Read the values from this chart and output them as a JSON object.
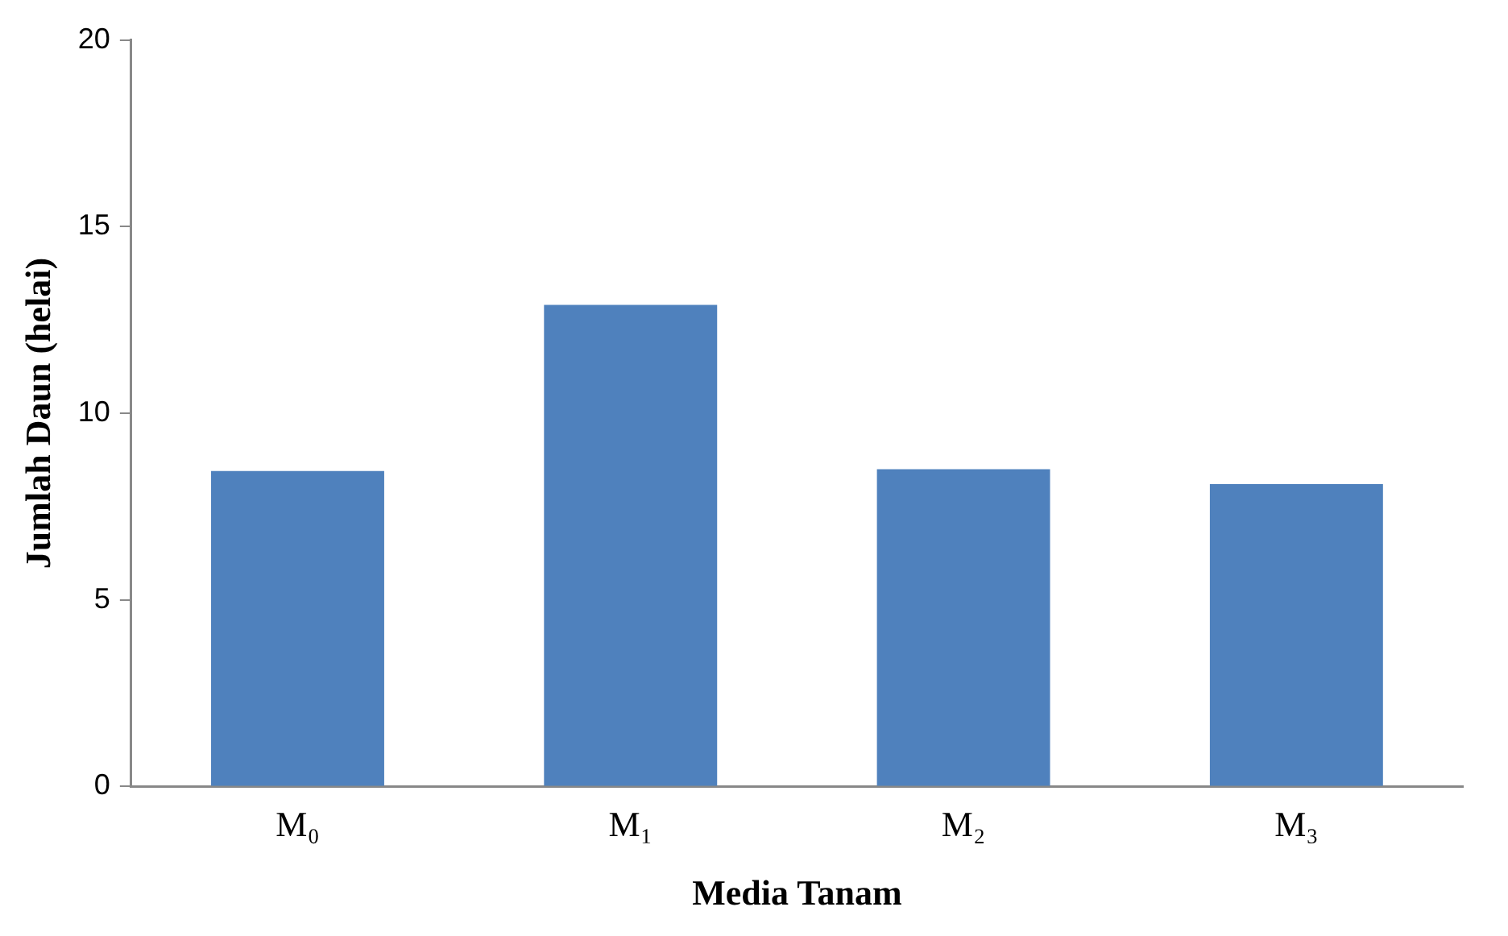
{
  "chart_data": {
    "type": "bar",
    "xlabel": "Media Tanam",
    "ylabel": "Jumlah Daun (helai)",
    "categories": [
      "M₀",
      "M₁",
      "M₂",
      "M₃"
    ],
    "values": [
      8.45,
      12.9,
      8.5,
      8.1
    ],
    "color": "#4f81bd",
    "ylim": [
      0,
      20
    ],
    "yticks": [
      0,
      5,
      10,
      15,
      20
    ],
    "grid": false,
    "legend": false
  }
}
